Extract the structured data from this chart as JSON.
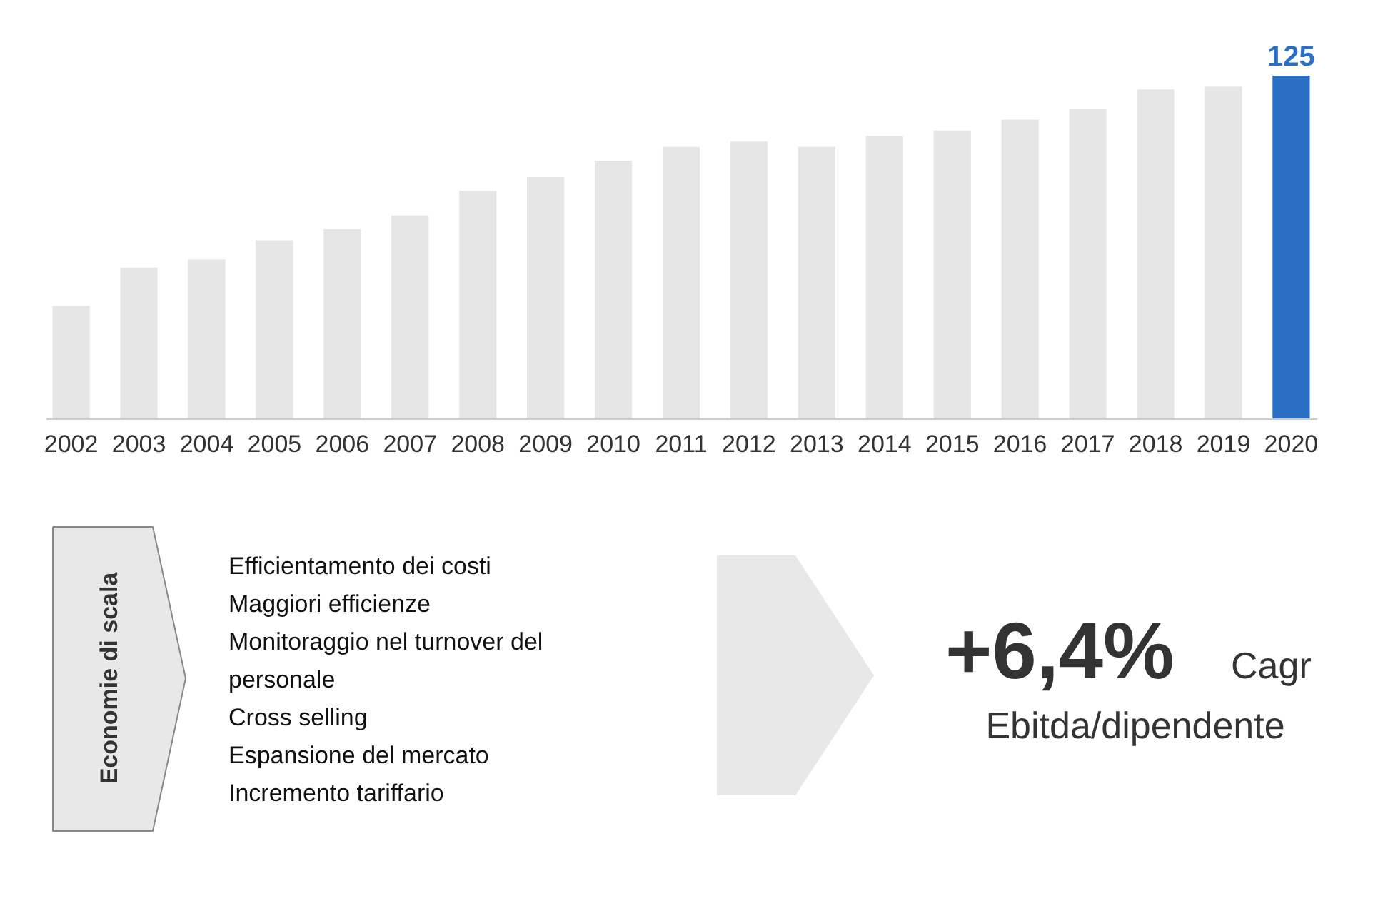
{
  "chart_data": {
    "type": "bar",
    "categories": [
      "2002",
      "2003",
      "2004",
      "2005",
      "2006",
      "2007",
      "2008",
      "2009",
      "2010",
      "2011",
      "2012",
      "2013",
      "2014",
      "2015",
      "2016",
      "2017",
      "2018",
      "2019",
      "2020"
    ],
    "values": [
      41,
      55,
      58,
      65,
      69,
      74,
      83,
      88,
      94,
      99,
      101,
      99,
      103,
      105,
      109,
      113,
      120,
      121,
      125
    ],
    "colors": [
      "#e6e6e6",
      "#e6e6e6",
      "#e6e6e6",
      "#e6e6e6",
      "#e6e6e6",
      "#e6e6e6",
      "#e6e6e6",
      "#e6e6e6",
      "#e6e6e6",
      "#e6e6e6",
      "#e6e6e6",
      "#e6e6e6",
      "#e6e6e6",
      "#e6e6e6",
      "#e6e6e6",
      "#e6e6e6",
      "#e6e6e6",
      "#e6e6e6",
      "#2a6fc4"
    ],
    "value_labels": [
      null,
      null,
      null,
      null,
      null,
      null,
      null,
      null,
      null,
      null,
      null,
      null,
      null,
      null,
      null,
      null,
      null,
      null,
      "125"
    ],
    "tick_labels": "x",
    "annotations": [
      "Economie di scala",
      "Efficientamento dei costi",
      "Maggiori efficienze",
      "Monitoraggio nel turnover del",
      "personale",
      "Cross selling",
      "Espansione del mercato",
      "Incremento tariffario",
      "+6,4%",
      "Cagr",
      "Ebitda/dipendente"
    ]
  }
}
